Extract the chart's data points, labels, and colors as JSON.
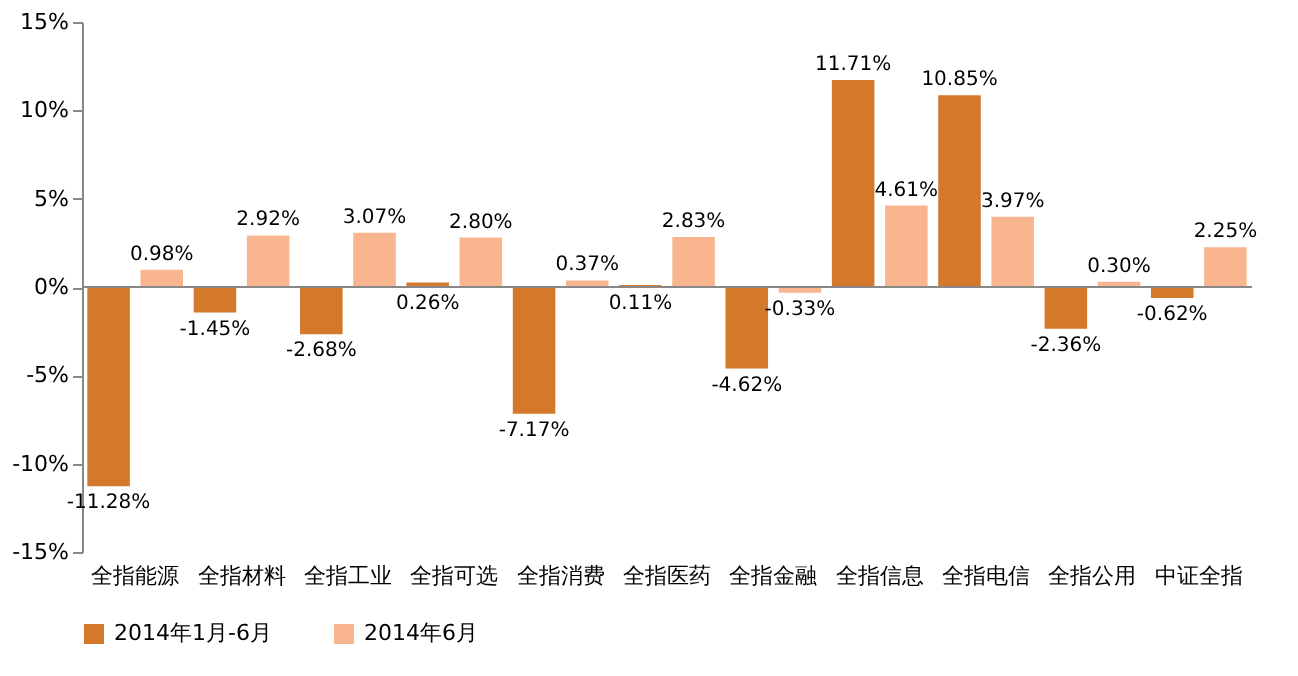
{
  "chart_data": {
    "type": "bar",
    "categories": [
      "全指能源",
      "全指材料",
      "全指工业",
      "全指可选",
      "全指消费",
      "全指医药",
      "全指金融",
      "全指信息",
      "全指电信",
      "全指公用",
      "中证全指"
    ],
    "series": [
      {
        "name": "2014年1月-6月",
        "color": "#d4782b",
        "values": [
          -11.28,
          -1.45,
          -2.68,
          0.26,
          -7.17,
          0.11,
          -4.62,
          11.71,
          10.85,
          -2.36,
          -0.62
        ],
        "value_labels": [
          "-11.28%",
          "-1.45%",
          "-2.68%",
          "0.26%",
          "-7.17%",
          "0.11%",
          "-4.62%",
          "11.71%",
          "10.85%",
          "-2.36%",
          "-0.62%"
        ]
      },
      {
        "name": "2014年6月",
        "color": "#f8b58f",
        "values": [
          0.98,
          2.92,
          3.07,
          2.8,
          0.37,
          2.83,
          -0.33,
          4.61,
          3.97,
          0.3,
          2.25
        ],
        "value_labels": [
          "0.98%",
          "2.92%",
          "3.07%",
          "2.80%",
          "0.37%",
          "2.83%",
          "-0.33%",
          "4.61%",
          "3.97%",
          "0.30%",
          "2.25%"
        ]
      }
    ],
    "ylim": [
      -15,
      15
    ],
    "yticks": [
      {
        "value": -15,
        "label": "-15%"
      },
      {
        "value": -10,
        "label": "-10%"
      },
      {
        "value": -5,
        "label": "-5%"
      },
      {
        "value": 0,
        "label": "0%"
      },
      {
        "value": 5,
        "label": "5%"
      },
      {
        "value": 10,
        "label": "10%"
      },
      {
        "value": 15,
        "label": "15%"
      }
    ],
    "grid": false,
    "ref_lines": [
      {
        "axis": "y",
        "value": 0,
        "color": "#888888"
      }
    ],
    "legend": "bottom"
  }
}
